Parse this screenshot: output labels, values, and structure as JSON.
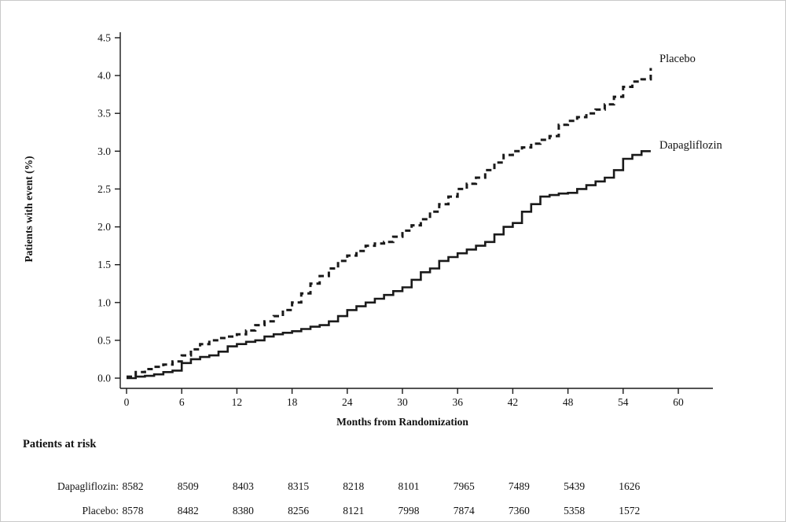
{
  "chart_data": {
    "type": "line",
    "subtype": "kaplan-meier-step",
    "title": "",
    "xlabel": "Months from Randomization",
    "ylabel": "Patients with event (%)",
    "xlim": [
      0,
      60
    ],
    "ylim": [
      0.0,
      4.5
    ],
    "xticks": [
      0,
      6,
      12,
      18,
      24,
      30,
      36,
      42,
      48,
      54,
      60
    ],
    "yticks": [
      "0.0",
      "0.5",
      "1.0",
      "1.5",
      "2.0",
      "2.5",
      "3.0",
      "3.5",
      "4.0",
      "4.5"
    ],
    "grid": false,
    "line_color": "#1a1a1a",
    "legend_position": "end-of-curve",
    "series": [
      {
        "name": "Placebo",
        "style": "dashed",
        "x": [
          0,
          1,
          2,
          3,
          4,
          5,
          6,
          7,
          8,
          9,
          10,
          11,
          12,
          13,
          14,
          15,
          16,
          17,
          18,
          19,
          20,
          21,
          22,
          23,
          24,
          25,
          26,
          27,
          28,
          29,
          30,
          31,
          32,
          33,
          34,
          35,
          36,
          37,
          38,
          39,
          40,
          41,
          42,
          43,
          44,
          45,
          46,
          47,
          48,
          49,
          50,
          51,
          52,
          53,
          54,
          55,
          56,
          57
        ],
        "y": [
          0.02,
          0.08,
          0.12,
          0.15,
          0.18,
          0.22,
          0.3,
          0.38,
          0.45,
          0.5,
          0.53,
          0.55,
          0.58,
          0.63,
          0.7,
          0.75,
          0.82,
          0.9,
          1.0,
          1.12,
          1.25,
          1.35,
          1.45,
          1.55,
          1.62,
          1.68,
          1.75,
          1.78,
          1.8,
          1.87,
          1.95,
          2.02,
          2.1,
          2.2,
          2.3,
          2.4,
          2.5,
          2.57,
          2.65,
          2.75,
          2.85,
          2.95,
          3.0,
          3.05,
          3.1,
          3.15,
          3.2,
          3.35,
          3.4,
          3.45,
          3.5,
          3.55,
          3.62,
          3.72,
          3.85,
          3.92,
          3.95,
          4.1
        ]
      },
      {
        "name": "Dapagliflozin",
        "style": "solid",
        "x": [
          0,
          1,
          2,
          3,
          4,
          5,
          6,
          7,
          8,
          9,
          10,
          11,
          12,
          13,
          14,
          15,
          16,
          17,
          18,
          19,
          20,
          21,
          22,
          23,
          24,
          25,
          26,
          27,
          28,
          29,
          30,
          31,
          32,
          33,
          34,
          35,
          36,
          37,
          38,
          39,
          40,
          41,
          42,
          43,
          44,
          45,
          46,
          47,
          48,
          49,
          50,
          51,
          52,
          53,
          54,
          55,
          56,
          57
        ],
        "y": [
          0.0,
          0.02,
          0.03,
          0.05,
          0.08,
          0.1,
          0.2,
          0.25,
          0.28,
          0.3,
          0.35,
          0.42,
          0.45,
          0.48,
          0.5,
          0.55,
          0.58,
          0.6,
          0.62,
          0.65,
          0.68,
          0.7,
          0.75,
          0.82,
          0.9,
          0.95,
          1.0,
          1.05,
          1.1,
          1.15,
          1.2,
          1.3,
          1.4,
          1.45,
          1.55,
          1.6,
          1.65,
          1.7,
          1.75,
          1.8,
          1.9,
          2.0,
          2.05,
          2.2,
          2.3,
          2.4,
          2.42,
          2.44,
          2.45,
          2.5,
          2.55,
          2.6,
          2.65,
          2.75,
          2.9,
          2.95,
          3.0,
          3.0
        ]
      }
    ],
    "risk_table": {
      "title": "Patients at risk",
      "months": [
        0,
        6,
        12,
        18,
        24,
        30,
        36,
        42,
        48,
        54
      ],
      "rows": [
        {
          "label": "Dapagliflozin:",
          "values": [
            8582,
            8509,
            8403,
            8315,
            8218,
            8101,
            7965,
            7489,
            5439,
            1626
          ]
        },
        {
          "label": "Placebo:",
          "values": [
            8578,
            8482,
            8380,
            8256,
            8121,
            7998,
            7874,
            7360,
            5358,
            1572
          ]
        }
      ]
    }
  }
}
